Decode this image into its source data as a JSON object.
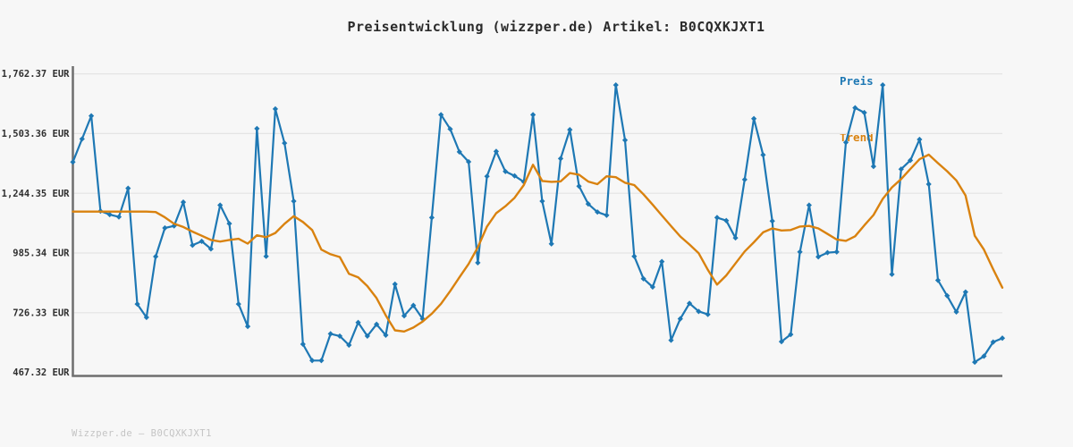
{
  "title": "Preisentwicklung (wizzper.de) Artikel: B0CQXKJXT1",
  "legend": {
    "items": [
      {
        "label": "Preis",
        "color": "#1e78b4"
      },
      {
        "label": "Trend",
        "color": "#d9820f"
      }
    ]
  },
  "footer": "Wizzper.de – B0CQXKJXT1",
  "colors": {
    "background": "#f7f7f7",
    "grid": "#e4e4e4",
    "axis": "#6f6f6f",
    "title_text": "#2b2b2b",
    "tick_text": "#2f2f2f",
    "watermark_text": "#c4c4c4",
    "preis_line": "#1e78b4",
    "trend_line": "#d9820f"
  },
  "chart_data": {
    "type": "line",
    "title": "Preisentwicklung (wizzper.de) Artikel: B0CQXKJXT1",
    "xlabel": "",
    "ylabel": "",
    "grid": true,
    "legend_position": "top-right",
    "x_axis": {
      "labels_visible": false
    },
    "y_axis": {
      "min": 467.32,
      "max": 1762.37,
      "unit": "EUR",
      "ticks": [
        {
          "label": "1,762.37 EUR",
          "value": 1762.37
        },
        {
          "label": "1,503.36 EUR",
          "value": 1503.36
        },
        {
          "label": "1,244.35 EUR",
          "value": 1244.35
        },
        {
          "label": "985.34 EUR",
          "value": 985.34
        },
        {
          "label": "726.33 EUR",
          "value": 726.33
        },
        {
          "label": "467.32 EUR",
          "value": 467.32
        }
      ]
    },
    "series": [
      {
        "name": "Preis",
        "color": "#1e78b4",
        "marker": "diamond",
        "values": [
          1380,
          1480,
          1580,
          1167,
          1152,
          1142,
          1266,
          764,
          706,
          970,
          1094,
          1103,
          1206,
          1019,
          1036,
          1003,
          1193,
          1113,
          764,
          667,
          1525,
          971,
          1610,
          1462,
          1210,
          590,
          519,
          519,
          635,
          625,
          586,
          684,
          625,
          676,
          629,
          850,
          713,
          758,
          700,
          1139,
          1585,
          1523,
          1424,
          1381,
          943,
          1318,
          1426,
          1339,
          1320,
          1294,
          1585,
          1210,
          1025,
          1395,
          1520,
          1275,
          1198,
          1163,
          1149,
          1714,
          1475,
          971,
          874,
          838,
          948,
          607,
          700,
          767,
          732,
          719,
          1139,
          1126,
          1051,
          1304,
          1568,
          1411,
          1124,
          601,
          632,
          990,
          1193,
          969,
          987,
          990,
          1465,
          1615,
          1594,
          1361,
          1714,
          893,
          1349,
          1387,
          1478,
          1284,
          867,
          800,
          730,
          816,
          512,
          538,
          599,
          616
        ]
      },
      {
        "name": "Trend",
        "color": "#d9820f",
        "marker": "none",
        "values": [
          1165,
          1165,
          1165,
          1165,
          1165,
          1165,
          1165,
          1165,
          1165,
          1163,
          1140,
          1112,
          1098,
          1078,
          1060,
          1042,
          1035,
          1042,
          1047,
          1026,
          1062,
          1054,
          1072,
          1112,
          1145,
          1120,
          1085,
          1000,
          980,
          968,
          895,
          880,
          842,
          790,
          715,
          650,
          645,
          662,
          688,
          722,
          765,
          820,
          880,
          938,
          1010,
          1100,
          1158,
          1188,
          1225,
          1280,
          1368,
          1298,
          1294,
          1296,
          1332,
          1325,
          1295,
          1284,
          1318,
          1314,
          1290,
          1280,
          1240,
          1195,
          1148,
          1102,
          1057,
          1022,
          984,
          912,
          848,
          888,
          940,
          992,
          1032,
          1075,
          1092,
          1083,
          1085,
          1100,
          1103,
          1092,
          1068,
          1044,
          1038,
          1058,
          1105,
          1150,
          1220,
          1270,
          1306,
          1350,
          1392,
          1412,
          1375,
          1340,
          1300,
          1235,
          1060,
          1000,
          915,
          835
        ]
      }
    ]
  }
}
